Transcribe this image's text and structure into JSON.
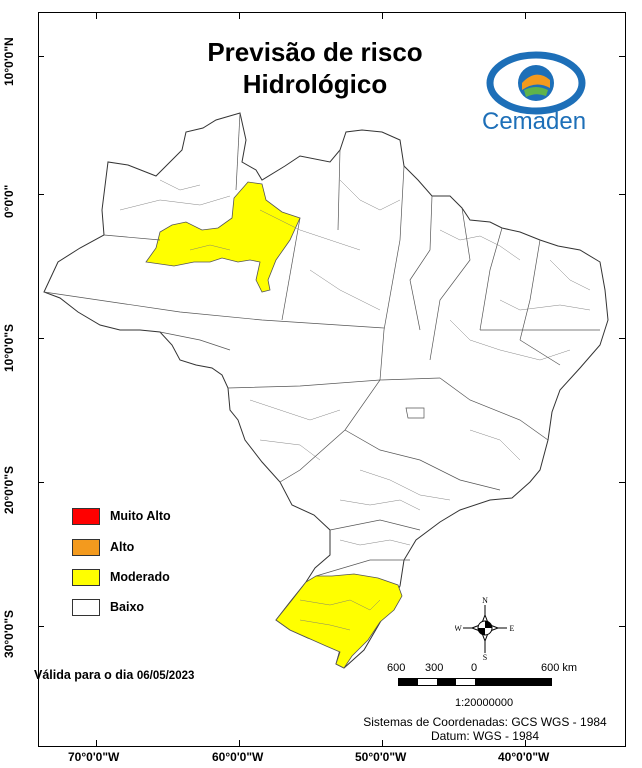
{
  "title": {
    "line1": "Previsão de risco",
    "line2": "Hidrológico"
  },
  "logo": {
    "name": "Cemaden"
  },
  "axes": {
    "lat_labels": [
      "10°0'0\"N",
      "0°0'0\"",
      "10°0'0\"S",
      "20°0'0\"S",
      "30°0'0\"S"
    ],
    "lon_labels": [
      "70°0'0\"W",
      "60°0'0\"W",
      "50°0'0\"W",
      "40°0'0\"W"
    ]
  },
  "legend": {
    "items": [
      {
        "label": "Muito Alto",
        "color": "#ff0000"
      },
      {
        "label": "Alto",
        "color": "#f39a1e"
      },
      {
        "label": "Moderado",
        "color": "#ffff00"
      },
      {
        "label": "Baixo",
        "color": "#ffffff"
      }
    ]
  },
  "validity": {
    "label": "Válida para o dia",
    "date": "06/05/2023"
  },
  "scale": {
    "labels": [
      "600",
      "300",
      "0",
      "600 km"
    ],
    "ratio": "1:20000000"
  },
  "compass": {
    "n": "N",
    "s": "S",
    "e": "E",
    "w": "W"
  },
  "coordinates": {
    "system": "Sistemas de Coordenadas: GCS WGS - 1984",
    "datum": "Datum: WGS - 1984"
  },
  "colors": {
    "moderado": "#ffff00",
    "baixo": "#ffffff",
    "border": "#555555"
  }
}
